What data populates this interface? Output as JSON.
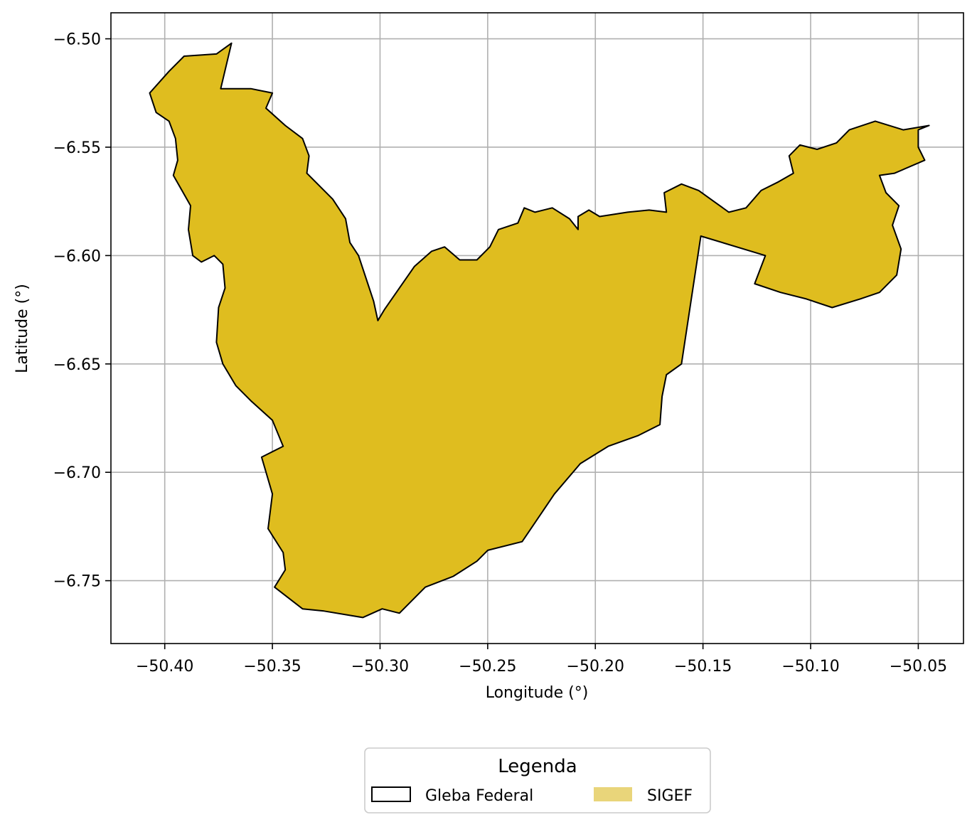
{
  "chart_data": {
    "type": "map",
    "xlabel": "Longitude (°)",
    "ylabel": "Latitude (°)",
    "xlim": [
      -50.425,
      -50.029
    ],
    "ylim": [
      -6.779,
      -6.488
    ],
    "xticks": [
      -50.4,
      -50.35,
      -50.3,
      -50.25,
      -50.2,
      -50.15,
      -50.1,
      -50.05
    ],
    "xtick_labels": [
      "−50.40",
      "−50.35",
      "−50.30",
      "−50.25",
      "−50.20",
      "−50.15",
      "−50.10",
      "−50.05"
    ],
    "yticks": [
      -6.5,
      -6.55,
      -6.6,
      -6.65,
      -6.7,
      -6.75
    ],
    "ytick_labels": [
      "−6.50",
      "−6.55",
      "−6.60",
      "−6.65",
      "−6.70",
      "−6.75"
    ],
    "grid": true,
    "fill_color": "#dfbd1f",
    "edge_color": "#000000",
    "legend": {
      "title": "Legenda",
      "placement": "bottom-center",
      "entries": [
        {
          "label": "Gleba Federal",
          "style": "outline",
          "color": "#000000"
        },
        {
          "label": "SIGEF",
          "style": "fill",
          "color": "#e9d57a"
        }
      ]
    },
    "polygon": [
      [
        -50.369,
        -6.502
      ],
      [
        -50.376,
        -6.507
      ],
      [
        -50.391,
        -6.508
      ],
      [
        -50.398,
        -6.515
      ],
      [
        -50.407,
        -6.525
      ],
      [
        -50.404,
        -6.534
      ],
      [
        -50.398,
        -6.538
      ],
      [
        -50.395,
        -6.546
      ],
      [
        -50.394,
        -6.556
      ],
      [
        -50.396,
        -6.563
      ],
      [
        -50.392,
        -6.57
      ],
      [
        -50.388,
        -6.577
      ],
      [
        -50.389,
        -6.588
      ],
      [
        -50.387,
        -6.6
      ],
      [
        -50.383,
        -6.603
      ],
      [
        -50.377,
        -6.6
      ],
      [
        -50.373,
        -6.604
      ],
      [
        -50.372,
        -6.615
      ],
      [
        -50.375,
        -6.624
      ],
      [
        -50.376,
        -6.64
      ],
      [
        -50.373,
        -6.65
      ],
      [
        -50.367,
        -6.66
      ],
      [
        -50.36,
        -6.667
      ],
      [
        -50.35,
        -6.676
      ],
      [
        -50.345,
        -6.688
      ],
      [
        -50.355,
        -6.693
      ],
      [
        -50.35,
        -6.71
      ],
      [
        -50.352,
        -6.726
      ],
      [
        -50.345,
        -6.737
      ],
      [
        -50.344,
        -6.745
      ],
      [
        -50.349,
        -6.753
      ],
      [
        -50.336,
        -6.763
      ],
      [
        -50.326,
        -6.764
      ],
      [
        -50.308,
        -6.767
      ],
      [
        -50.299,
        -6.763
      ],
      [
        -50.291,
        -6.765
      ],
      [
        -50.279,
        -6.753
      ],
      [
        -50.266,
        -6.748
      ],
      [
        -50.255,
        -6.741
      ],
      [
        -50.25,
        -6.736
      ],
      [
        -50.234,
        -6.732
      ],
      [
        -50.219,
        -6.71
      ],
      [
        -50.207,
        -6.696
      ],
      [
        -50.194,
        -6.688
      ],
      [
        -50.18,
        -6.683
      ],
      [
        -50.17,
        -6.678
      ],
      [
        -50.169,
        -6.665
      ],
      [
        -50.167,
        -6.655
      ],
      [
        -50.16,
        -6.65
      ],
      [
        -50.151,
        -6.591
      ],
      [
        -50.121,
        -6.6
      ],
      [
        -50.126,
        -6.613
      ],
      [
        -50.114,
        -6.617
      ],
      [
        -50.102,
        -6.62
      ],
      [
        -50.09,
        -6.624
      ],
      [
        -50.077,
        -6.62
      ],
      [
        -50.068,
        -6.617
      ],
      [
        -50.06,
        -6.609
      ],
      [
        -50.058,
        -6.597
      ],
      [
        -50.062,
        -6.586
      ],
      [
        -50.059,
        -6.577
      ],
      [
        -50.065,
        -6.571
      ],
      [
        -50.068,
        -6.563
      ],
      [
        -50.061,
        -6.562
      ],
      [
        -50.047,
        -6.556
      ],
      [
        -50.05,
        -6.55
      ],
      [
        -50.05,
        -6.542
      ],
      [
        -50.045,
        -6.54
      ],
      [
        -50.057,
        -6.542
      ],
      [
        -50.07,
        -6.538
      ],
      [
        -50.082,
        -6.542
      ],
      [
        -50.088,
        -6.548
      ],
      [
        -50.097,
        -6.551
      ],
      [
        -50.105,
        -6.549
      ],
      [
        -50.11,
        -6.554
      ],
      [
        -50.108,
        -6.562
      ],
      [
        -50.115,
        -6.566
      ],
      [
        -50.123,
        -6.57
      ],
      [
        -50.13,
        -6.578
      ],
      [
        -50.138,
        -6.58
      ],
      [
        -50.145,
        -6.575
      ],
      [
        -50.152,
        -6.57
      ],
      [
        -50.16,
        -6.567
      ],
      [
        -50.168,
        -6.571
      ],
      [
        -50.167,
        -6.58
      ],
      [
        -50.175,
        -6.579
      ],
      [
        -50.185,
        -6.58
      ],
      [
        -50.198,
        -6.582
      ],
      [
        -50.203,
        -6.579
      ],
      [
        -50.208,
        -6.582
      ],
      [
        -50.208,
        -6.588
      ],
      [
        -50.212,
        -6.583
      ],
      [
        -50.22,
        -6.578
      ],
      [
        -50.228,
        -6.58
      ],
      [
        -50.233,
        -6.578
      ],
      [
        -50.236,
        -6.585
      ],
      [
        -50.245,
        -6.588
      ],
      [
        -50.249,
        -6.596
      ],
      [
        -50.255,
        -6.602
      ],
      [
        -50.263,
        -6.602
      ],
      [
        -50.27,
        -6.596
      ],
      [
        -50.276,
        -6.598
      ],
      [
        -50.284,
        -6.605
      ],
      [
        -50.291,
        -6.615
      ],
      [
        -50.298,
        -6.625
      ],
      [
        -50.301,
        -6.63
      ],
      [
        -50.303,
        -6.621
      ],
      [
        -50.306,
        -6.612
      ],
      [
        -50.31,
        -6.6
      ],
      [
        -50.314,
        -6.594
      ],
      [
        -50.316,
        -6.583
      ],
      [
        -50.322,
        -6.574
      ],
      [
        -50.328,
        -6.568
      ],
      [
        -50.334,
        -6.562
      ],
      [
        -50.333,
        -6.554
      ],
      [
        -50.336,
        -6.546
      ],
      [
        -50.344,
        -6.54
      ],
      [
        -50.353,
        -6.532
      ],
      [
        -50.35,
        -6.525
      ],
      [
        -50.36,
        -6.523
      ],
      [
        -50.374,
        -6.523
      ]
    ]
  },
  "ui": {
    "colors": {
      "axes_border": "#000000",
      "grid": "#b0b0b0",
      "legend_border": "#cccccc"
    }
  }
}
